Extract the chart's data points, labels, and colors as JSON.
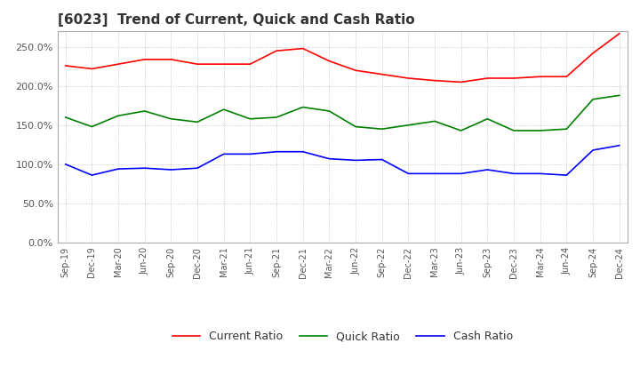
{
  "title": "[6023]  Trend of Current, Quick and Cash Ratio",
  "x_labels": [
    "Sep-19",
    "Dec-19",
    "Mar-20",
    "Jun-20",
    "Sep-20",
    "Dec-20",
    "Mar-21",
    "Jun-21",
    "Sep-21",
    "Dec-21",
    "Mar-22",
    "Jun-22",
    "Sep-22",
    "Dec-22",
    "Mar-23",
    "Jun-23",
    "Sep-23",
    "Dec-23",
    "Mar-24",
    "Jun-24",
    "Sep-24",
    "Dec-24"
  ],
  "current_ratio": [
    226,
    222,
    228,
    234,
    234,
    228,
    228,
    228,
    245,
    248,
    232,
    220,
    215,
    210,
    207,
    205,
    210,
    210,
    212,
    212,
    242,
    267
  ],
  "quick_ratio": [
    160,
    148,
    162,
    168,
    158,
    154,
    170,
    158,
    160,
    173,
    168,
    148,
    145,
    150,
    155,
    143,
    158,
    143,
    143,
    145,
    183,
    188
  ],
  "cash_ratio": [
    100,
    86,
    94,
    95,
    93,
    95,
    113,
    113,
    116,
    116,
    107,
    105,
    106,
    88,
    88,
    88,
    93,
    88,
    88,
    86,
    118,
    124
  ],
  "current_color": "#ff0000",
  "quick_color": "#008000",
  "cash_color": "#0000ff",
  "ylim": [
    0,
    270
  ],
  "yticks": [
    0,
    50,
    100,
    150,
    200,
    250
  ],
  "background_color": "#ffffff",
  "grid_color": "#bbbbbb"
}
